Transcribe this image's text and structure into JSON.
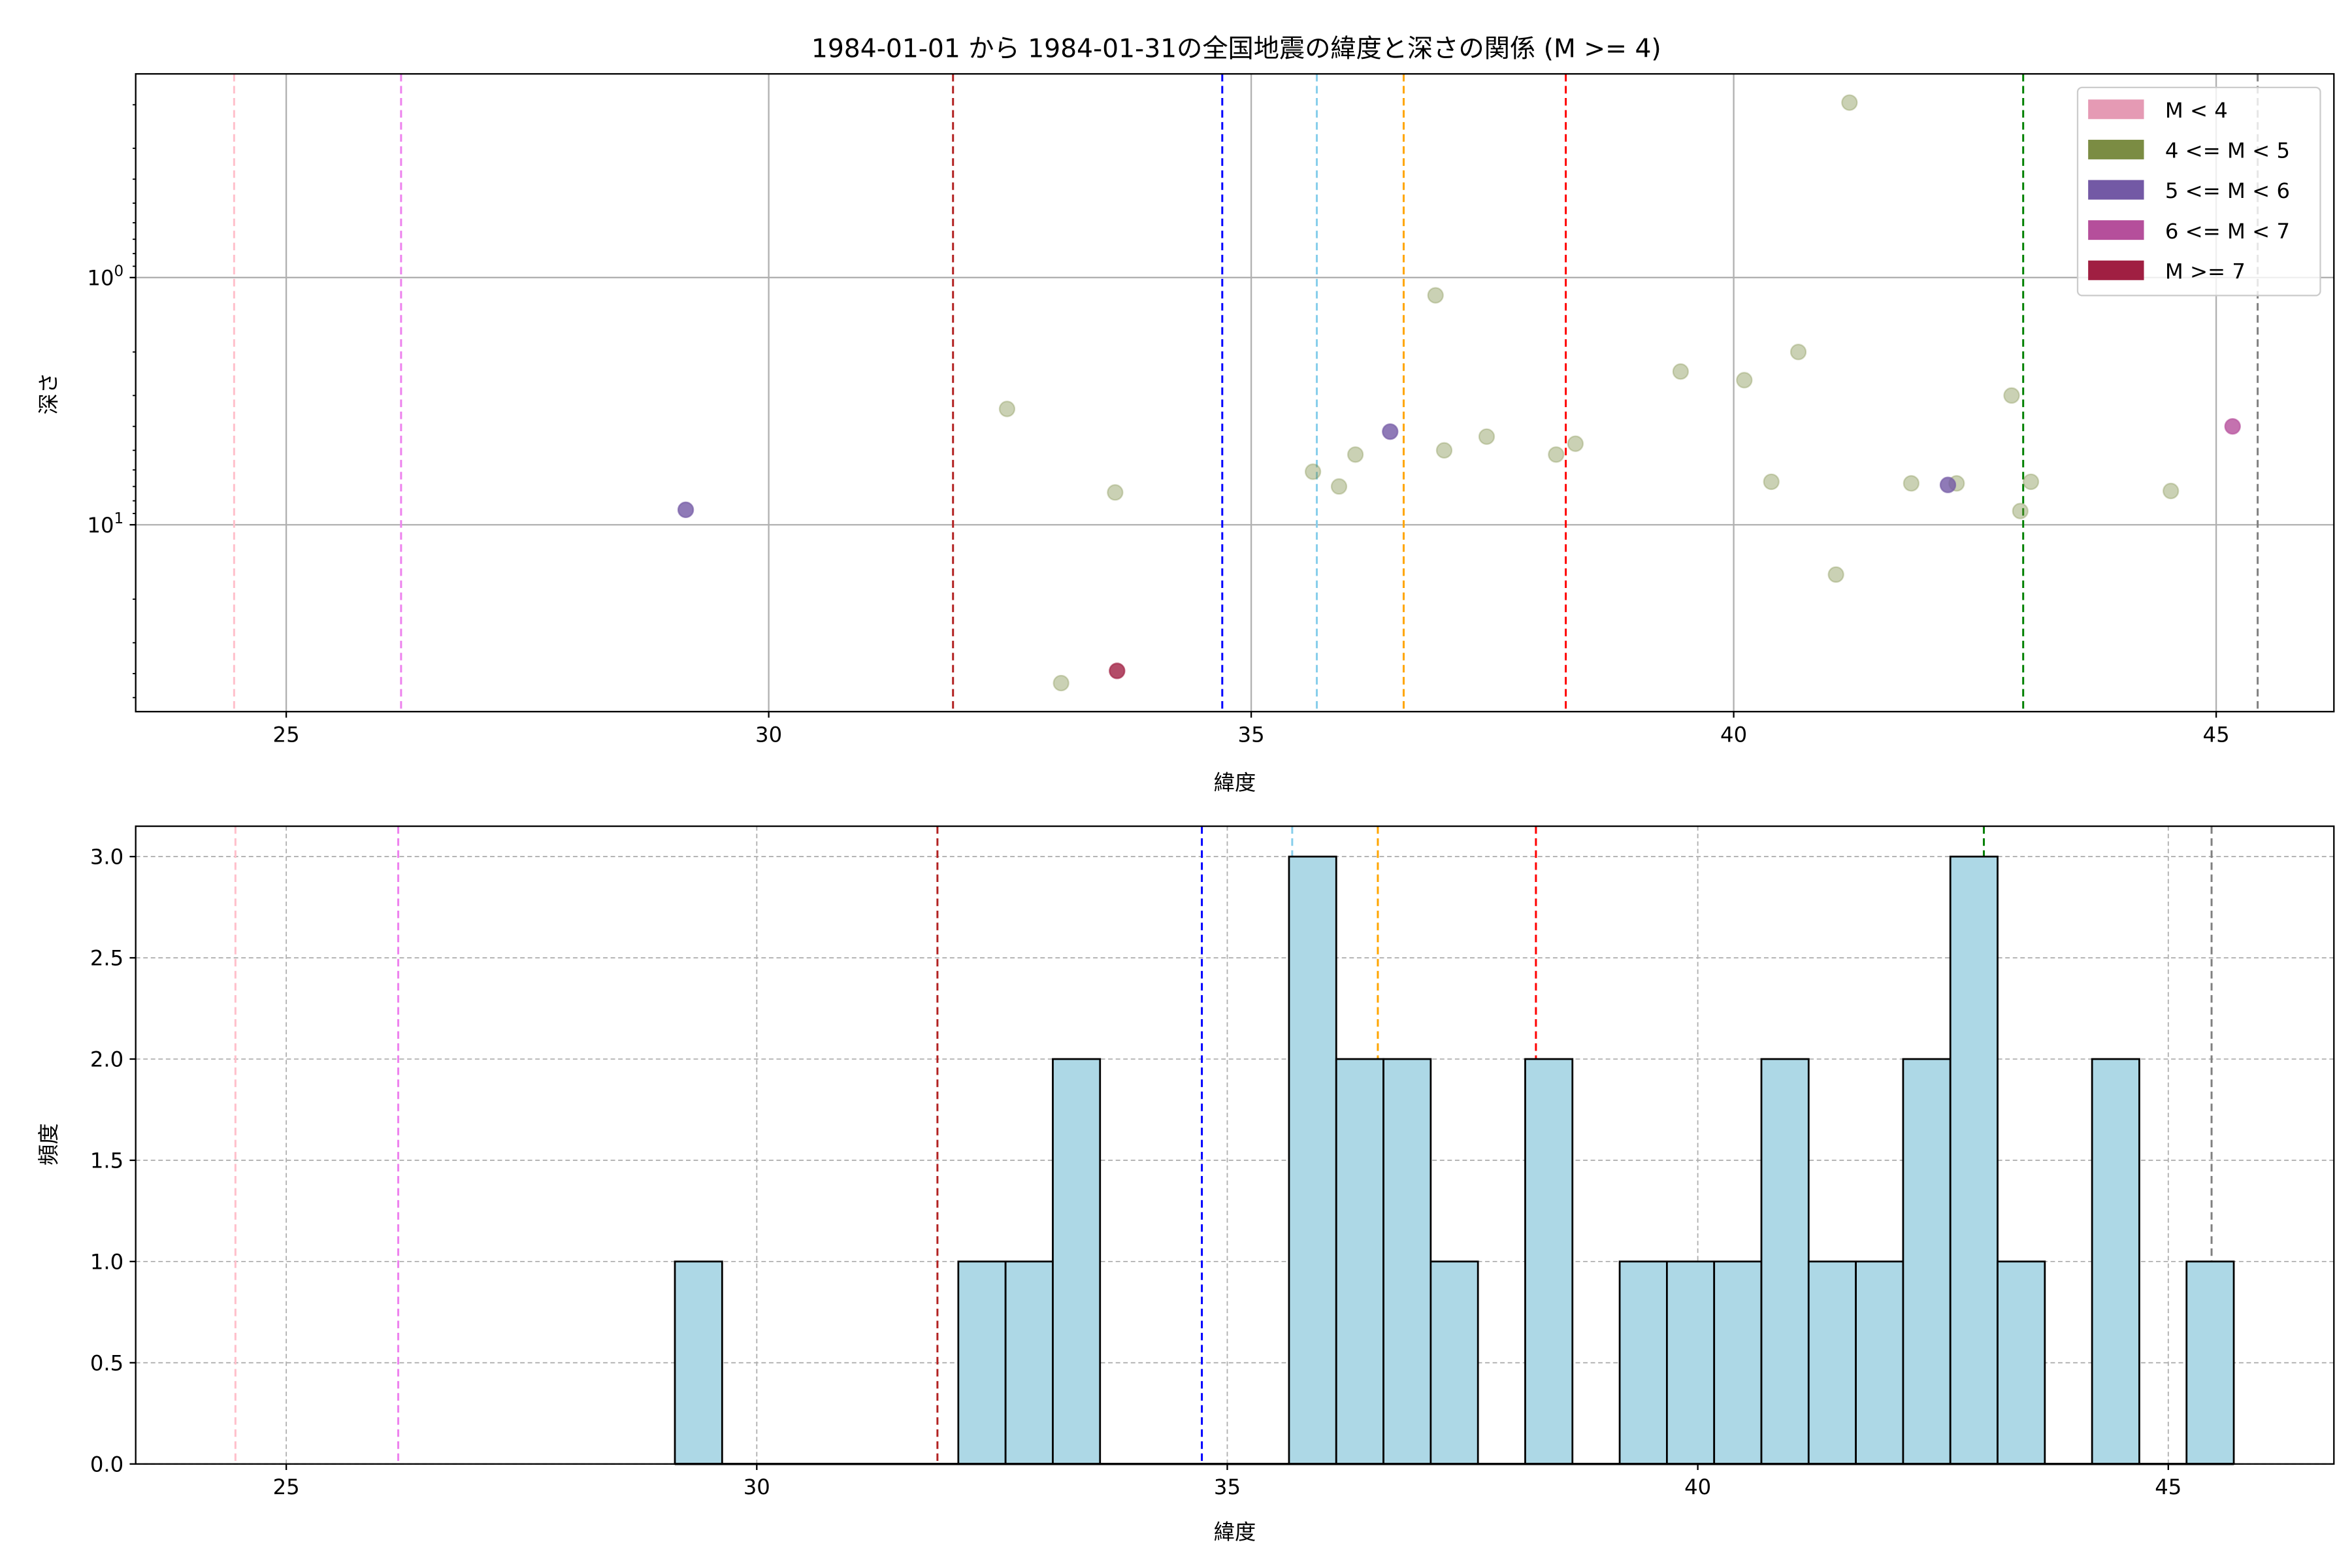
{
  "chart_data": [
    {
      "type": "scatter",
      "title": "1984-01-01 から 1984-01-31の全国地震の緯度と深さの関係 (M >= 4)",
      "xlabel": "緯度",
      "ylabel": "深さ",
      "xlim": [
        23.44,
        46.22
      ],
      "ylim": [
        57,
        0.15
      ],
      "yscale": "log",
      "yinverted": true,
      "grid": true,
      "xticks": [
        25,
        30,
        35,
        40,
        45
      ],
      "yticks": [
        {
          "base": "10",
          "exp": "0",
          "value": 1
        },
        {
          "base": "10",
          "exp": "1",
          "value": 10
        }
      ],
      "legend_position": "upper right",
      "legend": [
        {
          "label": "M < 4",
          "color": "#e59ab4"
        },
        {
          "label": "4 <= M < 5",
          "color": "#7b8c43"
        },
        {
          "label": "5 <= M < 6",
          "color": "#7359a5"
        },
        {
          "label": "6 <= M < 7",
          "color": "#b54f9b"
        },
        {
          "label": "M >= 7",
          "color": "#a01f42"
        }
      ],
      "points": [
        {
          "lat": 29.14,
          "depth": 8.7,
          "class": 2
        },
        {
          "lat": 32.47,
          "depth": 3.4,
          "class": 1
        },
        {
          "lat": 33.59,
          "depth": 7.4,
          "class": 1
        },
        {
          "lat": 33.03,
          "depth": 43.7,
          "class": 1
        },
        {
          "lat": 33.61,
          "depth": 39.0,
          "class": 4
        },
        {
          "lat": 35.64,
          "depth": 6.1,
          "class": 1
        },
        {
          "lat": 35.91,
          "depth": 7.0,
          "class": 1
        },
        {
          "lat": 36.08,
          "depth": 5.2,
          "class": 1
        },
        {
          "lat": 36.44,
          "depth": 4.2,
          "class": 2
        },
        {
          "lat": 36.91,
          "depth": 1.18,
          "class": 1
        },
        {
          "lat": 37.0,
          "depth": 5.0,
          "class": 1
        },
        {
          "lat": 37.44,
          "depth": 4.4,
          "class": 1
        },
        {
          "lat": 38.16,
          "depth": 5.2,
          "class": 1
        },
        {
          "lat": 38.36,
          "depth": 4.7,
          "class": 1
        },
        {
          "lat": 39.45,
          "depth": 2.4,
          "class": 1
        },
        {
          "lat": 40.11,
          "depth": 2.6,
          "class": 1
        },
        {
          "lat": 40.39,
          "depth": 6.7,
          "class": 1
        },
        {
          "lat": 40.67,
          "depth": 2.0,
          "class": 1
        },
        {
          "lat": 41.06,
          "depth": 15.9,
          "class": 1
        },
        {
          "lat": 41.2,
          "depth": 0.196,
          "class": 1
        },
        {
          "lat": 41.84,
          "depth": 6.8,
          "class": 1
        },
        {
          "lat": 42.31,
          "depth": 6.8,
          "class": 1
        },
        {
          "lat": 42.22,
          "depth": 6.9,
          "class": 2
        },
        {
          "lat": 42.88,
          "depth": 3.0,
          "class": 1
        },
        {
          "lat": 42.97,
          "depth": 8.8,
          "class": 1
        },
        {
          "lat": 43.08,
          "depth": 6.7,
          "class": 1
        },
        {
          "lat": 44.53,
          "depth": 7.3,
          "class": 1
        },
        {
          "lat": 45.17,
          "depth": 4.0,
          "class": 3
        }
      ],
      "vlines": [
        {
          "x": 24.46,
          "color": "#ffc0cb"
        },
        {
          "x": 26.19,
          "color": "#ee82ee"
        },
        {
          "x": 31.91,
          "color": "#b22222"
        },
        {
          "x": 34.7,
          "color": "#0000ff"
        },
        {
          "x": 35.68,
          "color": "#87ceeb"
        },
        {
          "x": 36.58,
          "color": "#ffa500"
        },
        {
          "x": 38.26,
          "color": "#ff0000"
        },
        {
          "x": 43.0,
          "color": "#008000"
        },
        {
          "x": 45.43,
          "color": "#808080"
        }
      ]
    },
    {
      "type": "bar",
      "subtype": "histogram",
      "xlabel": "緯度",
      "ylabel": "頻度",
      "xlim": [
        23.4,
        46.76
      ],
      "ylim": [
        0,
        3.15
      ],
      "grid": "dashed",
      "xticks": [
        25,
        30,
        35,
        40,
        45
      ],
      "yticks": [
        "0.0",
        "0.5",
        "1.0",
        "1.5",
        "2.0",
        "2.5",
        "3.0"
      ],
      "bin_start": 29.13,
      "bin_width": 0.502,
      "counts": [
        1,
        0,
        0,
        0,
        0,
        0,
        1,
        1,
        2,
        0,
        0,
        0,
        0,
        3,
        2,
        2,
        1,
        0,
        2,
        0,
        1,
        1,
        1,
        2,
        1,
        1,
        2,
        3,
        1,
        0,
        2,
        0,
        1
      ],
      "bar_color": "#add8e6",
      "vlines": [
        {
          "x": 24.46,
          "color": "#ffc0cb"
        },
        {
          "x": 26.19,
          "color": "#ee82ee"
        },
        {
          "x": 31.92,
          "color": "#b22222"
        },
        {
          "x": 34.73,
          "color": "#0000ff"
        },
        {
          "x": 35.69,
          "color": "#87ceeb"
        },
        {
          "x": 36.6,
          "color": "#ffa500"
        },
        {
          "x": 38.28,
          "color": "#ff0000"
        },
        {
          "x": 43.04,
          "color": "#008000"
        },
        {
          "x": 45.46,
          "color": "#808080"
        }
      ]
    }
  ]
}
